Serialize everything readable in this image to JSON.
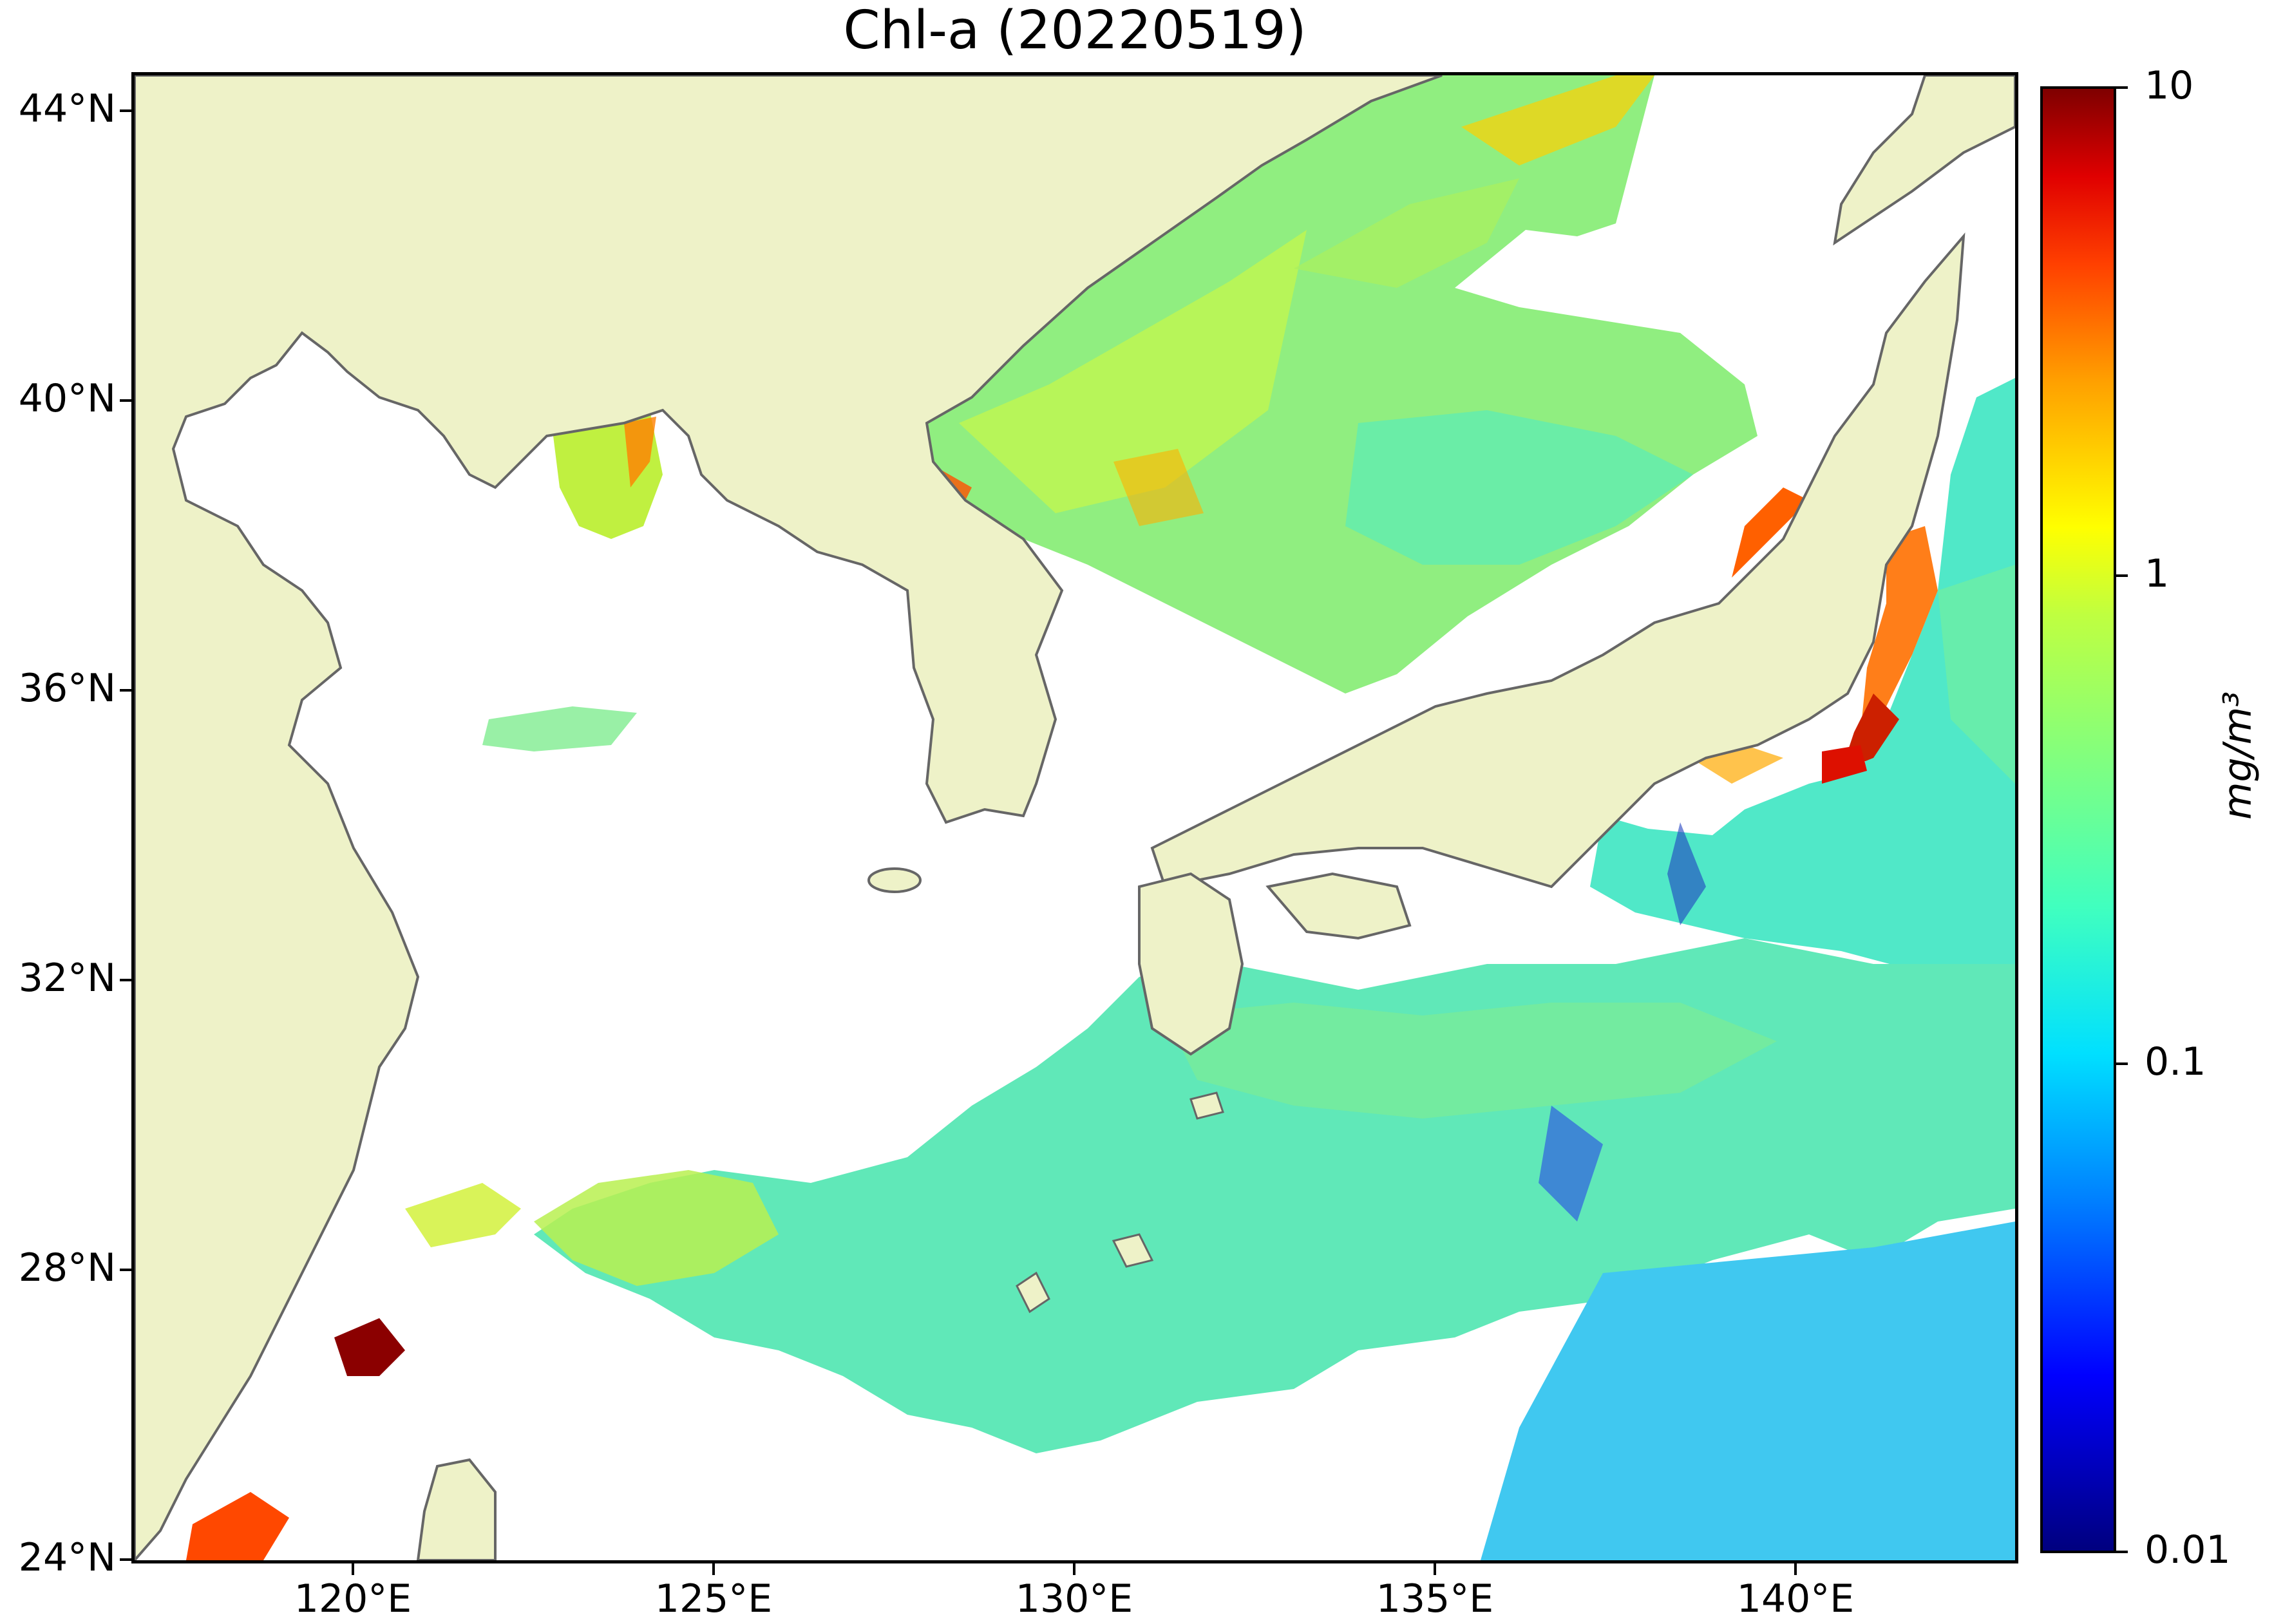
{
  "title": "Chl-a (20220519)",
  "map": {
    "lat_labels": [
      "44°N",
      "40°N",
      "36°N",
      "32°N",
      "28°N",
      "24°N"
    ],
    "lon_labels": [
      "120°E",
      "125°E",
      "130°E",
      "135°E",
      "140°E"
    ],
    "land_color": "#eef2c8",
    "coast_color": "#666666",
    "no_data_color": "#ffffff"
  },
  "colorbar": {
    "tick_labels": [
      "10",
      "1",
      "0.1",
      "0.01"
    ],
    "unit": "mg/m³",
    "scale": "log",
    "range": [
      0.01,
      10
    ],
    "colormap": "jet"
  }
}
